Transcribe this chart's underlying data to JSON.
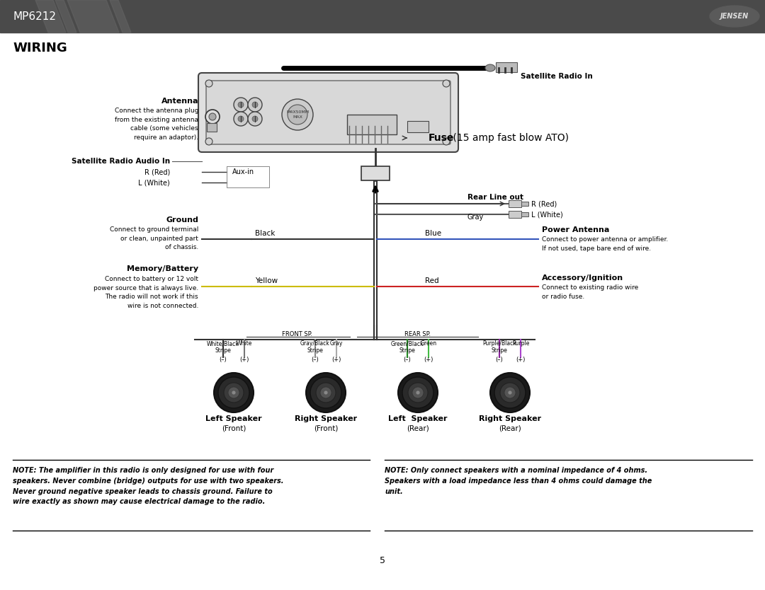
{
  "page_title": "MP6212",
  "section_title": "WIRING",
  "fuse_label_bold": "Fuse",
  "fuse_label_normal": " (15 amp fast blow ATO)",
  "page_number": "5",
  "header_bg": "#555555",
  "note1_line1": "NOTE: The amplifier in this radio is only designed for use with four",
  "note1_line2": "speakers. Never combine (bridge) outputs for use with two speakers.",
  "note1_line3": "Never ground negative speaker leads to chassis ground. Failure to",
  "note1_line4": "wire exactly as shown may cause electrical damage to the radio.",
  "note2_line1": "NOTE: Only connect speakers with a nominal impedance of 4 ohms.",
  "note2_line2": "Speakers with a load impedance less than 4 ohms could damage the",
  "note2_line3": "unit.",
  "antenna_label": "Antenna",
  "antenna_text": "Connect the antenna plug\nfrom the existing antenna\ncable (some vehicles\nrequire an adaptor).",
  "sat_radio_label": "Satellite Radio Audio In",
  "sat_radio_in_label": "Satellite Radio In",
  "ground_label": "Ground",
  "ground_text": "Connect to ground terminal\nor clean, unpainted part\nof chassis.",
  "memory_label": "Memory/Battery",
  "memory_text": "Connect to battery or 12 volt\npower source that is always live.\nThe radio will not work if this\nwire is not connected.",
  "power_ant_label": "Power Antenna",
  "power_ant_text": "Connect to power antenna or amplifier.\nIf not used, tape bare end of wire.",
  "acc_label": "Accessory/Ignition",
  "acc_text": "Connect to existing radio wire\nor radio fuse.",
  "aux_in_label": "Aux-in",
  "rear_line_label": "Rear Line out",
  "gray_label": "Gray",
  "black_label": "Black",
  "yellow_label": "Yellow",
  "blue_label": "Blue",
  "red_label": "Red",
  "r_red": "R (Red)",
  "l_white": "L (White)",
  "r_red_right": "R (Red)",
  "l_white_right": "L (White)",
  "front_sp_label": "FRONT SP.",
  "rear_sp_label": "REAR SP.",
  "speakers": [
    {
      "name": "Left Speaker",
      "sub": "(Front)",
      "neg_wire": "White/Black\nStripe",
      "pos_wire": "White"
    },
    {
      "name": "Right Speaker",
      "sub": "(Front)",
      "neg_wire": "Gray/Black\nStripe",
      "pos_wire": "Gray"
    },
    {
      "name": "Left  Speaker",
      "sub": "(Rear)",
      "neg_wire": "Green/Black\nStripe",
      "pos_wire": "Green"
    },
    {
      "name": "Right Speaker",
      "sub": "(Rear)",
      "neg_wire": "Purple/Black\nStripe",
      "pos_wire": "Purple"
    }
  ]
}
